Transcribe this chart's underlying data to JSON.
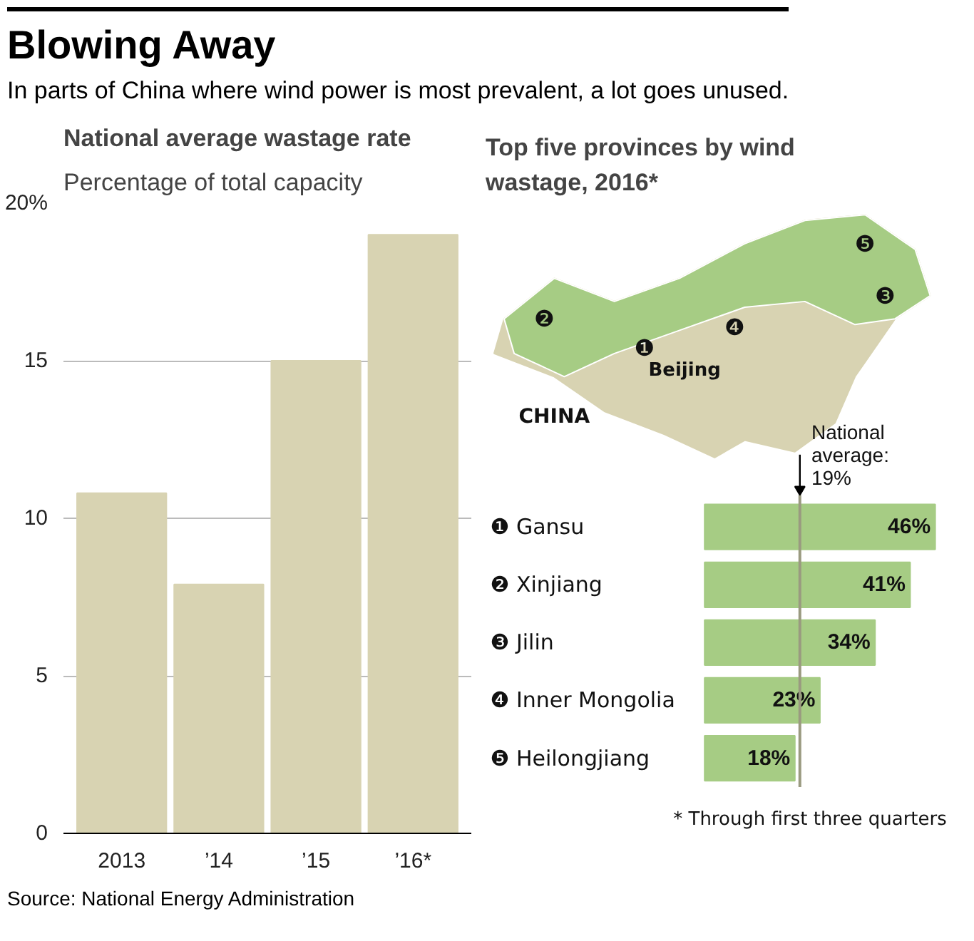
{
  "chart_data": [
    {
      "type": "bar",
      "title": "National average wastage rate",
      "subtitle": "Percentage of total capacity",
      "annotations": [
        "Blowing Away",
        "In parts of China where wind power is most prevalent, a lot goes unused.",
        "Source: National Energy Administration"
      ],
      "categories": [
        "2013",
        "’14",
        "’15",
        "’16*"
      ],
      "values": [
        10.8,
        7.9,
        15,
        19
      ],
      "color": "#d8d3b2",
      "ylim": [
        0,
        20
      ],
      "yticks": [
        0,
        5,
        10,
        15,
        {
          "value": 20,
          "label": "20%"
        }
      ],
      "grid": "y"
    },
    {
      "type": "bar",
      "orientation": "horizontal",
      "title": "Top five provinces by wind wastage, 2016*",
      "categories": [
        "❶ Gansu",
        "❷ Xinjiang",
        "❸ Jilin",
        "❹ Inner Mongolia",
        "❺ Heilongjiang"
      ],
      "values": [
        46,
        41,
        34,
        23,
        18
      ],
      "color": "#a6cc84",
      "value_labels": [
        "46%",
        "41%",
        "34%",
        "23%",
        "18%"
      ],
      "ref_lines": [
        {
          "axis": "x",
          "value": 19,
          "label": "National average: 19%",
          "color": "#9a9a80"
        }
      ],
      "annotations": [
        "CHINA",
        "Beijing",
        "❶",
        "❷",
        "❸",
        "❹",
        "❺",
        "* Through first three quarters"
      ]
    }
  ]
}
